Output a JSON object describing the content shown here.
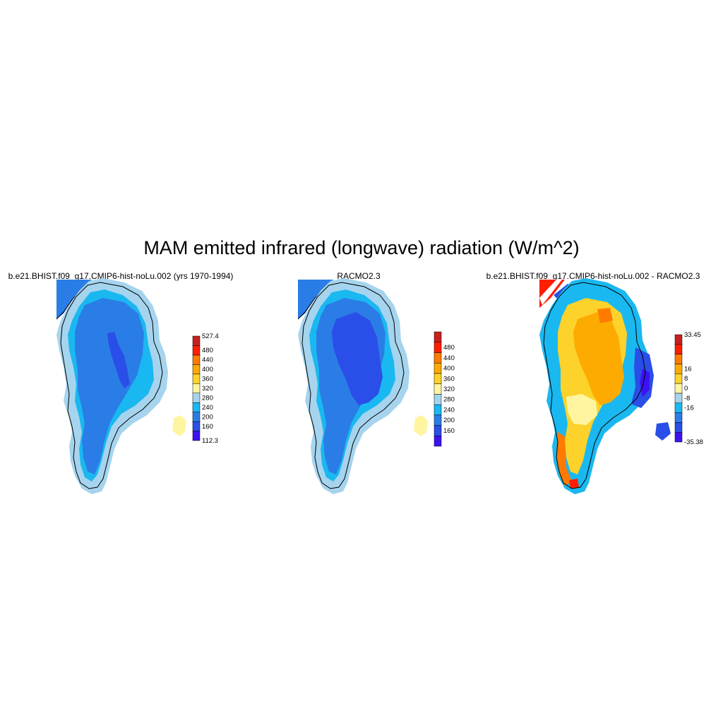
{
  "title": "MAM emitted infrared (longwave) radiation (W/m^2)",
  "chart_data": [
    {
      "type": "heatmap",
      "title": "b.e21.BHIST.f09_g17.CMIP6-hist-noLu.002 (yrs 1970-1994)",
      "region": "Greenland",
      "colorbar": {
        "min_label": "112.3",
        "max_label": "527.4",
        "levels": [
          "160",
          "200",
          "240",
          "280",
          "320",
          "360",
          "400",
          "440",
          "480"
        ],
        "colors": [
          "#3c12f2",
          "#2a4ee8",
          "#2a7de6",
          "#1ab8f0",
          "#a6d4ee",
          "#fff5a0",
          "#fdd22b",
          "#fdab00",
          "#ff7b00",
          "#ff1e00",
          "#c8201e"
        ]
      },
      "dominant_values": {
        "ice_sheet_interior": "200-240",
        "ice_sheet_core": "160-200",
        "margins": "240-280",
        "coastal_edge": "280-320"
      }
    },
    {
      "type": "heatmap",
      "title": "RACMO2.3",
      "region": "Greenland",
      "colorbar": {
        "min_label": "",
        "max_label": "",
        "levels": [
          "160",
          "200",
          "240",
          "280",
          "320",
          "360",
          "400",
          "440",
          "480"
        ],
        "colors": [
          "#3c12f2",
          "#2a4ee8",
          "#2a7de6",
          "#1ab8f0",
          "#a6d4ee",
          "#fff5a0",
          "#fdd22b",
          "#fdab00",
          "#ff7b00",
          "#ff1e00",
          "#c8201e"
        ]
      },
      "dominant_values": {
        "ice_sheet_interior": "160-200",
        "middle_ring": "200-240",
        "margins": "240-280",
        "coastal_edge": "280-320"
      }
    },
    {
      "type": "heatmap",
      "title": "b.e21.BHIST.f09_g17.CMIP6-hist-noLu.002 - RACMO2.3",
      "region": "Greenland",
      "colorbar": {
        "min_label": "-35.38",
        "max_label": "33.45",
        "levels": [
          "-16",
          "-8",
          "0",
          "8",
          "16"
        ],
        "colors": [
          "#3c12f2",
          "#2a4ee8",
          "#2a7de6",
          "#1ab8f0",
          "#a6d4ee",
          "#fff5a0",
          "#fdd22b",
          "#fdab00",
          "#ff7b00",
          "#ff1e00",
          "#c8201e"
        ]
      },
      "dominant_values": {
        "ice_sheet_interior": "8-16",
        "southern_interior": "0-8",
        "east_margin": "-35 to -8",
        "northwest_coast": "16-33"
      }
    }
  ]
}
